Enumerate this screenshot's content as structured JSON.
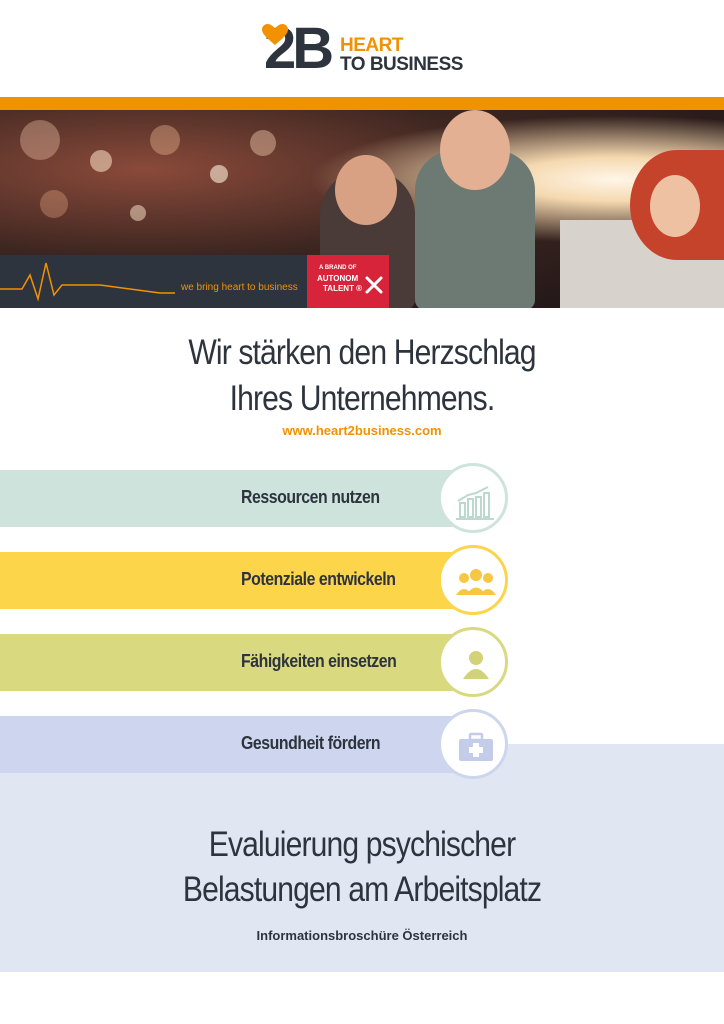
{
  "logo": {
    "mark": "2B",
    "line1": "HEART",
    "line2": "TO BUSINESS"
  },
  "hero": {
    "slogan": "we bring heart to business",
    "badge_line1": "A BRAND OF",
    "badge_line2": "AUTONOM",
    "badge_line3": "TALENT ®"
  },
  "headline": {
    "line1": "Wir stärken den Herzschlag",
    "line2": "Ihres Unternehmens."
  },
  "website": "www.heart2business.com",
  "bars": [
    {
      "label": "Ressourcen nutzen",
      "color": "#cfe3dd",
      "ring": "#cfe3dd",
      "icon": "bar-chart-icon"
    },
    {
      "label": "Potenziale entwickeln",
      "color": "#fcd54a",
      "ring": "#fcd54a",
      "icon": "group-icon"
    },
    {
      "label": "Fähigkeiten einsetzen",
      "color": "#d9da7f",
      "ring": "#d9da7f",
      "icon": "person-icon"
    },
    {
      "label": "Gesundheit fördern",
      "color": "#cdd6ee",
      "ring": "#cdd6ee",
      "icon": "first-aid-kit-icon"
    }
  ],
  "bottom": {
    "title_line1": "Evaluierung psychischer",
    "title_line2": "Belastungen am Arbeitsplatz",
    "subtitle": "Informationsbroschüre Österreich"
  },
  "colors": {
    "orange": "#f39200",
    "dark": "#2e343d",
    "panel": "#e1e6f3"
  }
}
